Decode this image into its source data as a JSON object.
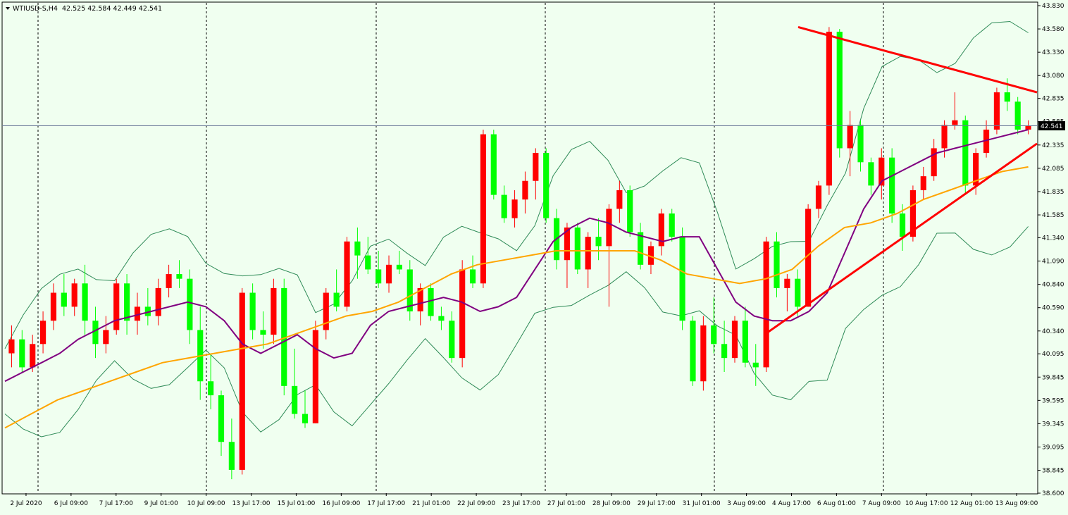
{
  "header": {
    "symbol": "WTIUSD-S,H4",
    "ohlc": "42.525 42.584 42.449 42.541"
  },
  "current_price_label": "42.541",
  "chart_data": {
    "type": "candlestick",
    "title": "",
    "xlabel": "",
    "ylabel": "",
    "ylim": [
      38.6,
      43.83
    ],
    "grid": "vertical dashed at session separators",
    "current_price": 42.541,
    "y_ticks": [
      "43.830",
      "43.580",
      "43.330",
      "43.080",
      "42.835",
      "42.585",
      "42.335",
      "42.085",
      "41.835",
      "41.585",
      "41.340",
      "41.090",
      "40.840",
      "40.590",
      "40.340",
      "40.095",
      "39.845",
      "39.595",
      "39.345",
      "39.095",
      "38.845",
      "38.600"
    ],
    "x_ticks": [
      "2 Jul 2020",
      "6 Jul 09:00",
      "7 Jul 17:00",
      "9 Jul 01:00",
      "10 Jul 09:00",
      "13 Jul 17:00",
      "15 Jul 01:00",
      "16 Jul 09:00",
      "17 Jul 17:00",
      "21 Jul 01:00",
      "22 Jul 09:00",
      "23 Jul 17:00",
      "27 Jul 01:00",
      "28 Jul 09:00",
      "29 Jul 17:00",
      "31 Jul 01:00",
      "3 Aug 09:00",
      "4 Aug 17:00",
      "6 Aug 01:00",
      "7 Aug 09:00",
      "10 Aug 17:00",
      "12 Aug 01:00",
      "13 Aug 09:00"
    ],
    "up_color": "#FF0000",
    "down_color": "#00FF00",
    "candles": [
      [
        40.1,
        40.4,
        39.95,
        40.25
      ],
      [
        40.25,
        40.35,
        39.9,
        39.95
      ],
      [
        39.95,
        40.3,
        39.9,
        40.2
      ],
      [
        40.2,
        40.55,
        40.1,
        40.45
      ],
      [
        40.45,
        40.85,
        40.35,
        40.75
      ],
      [
        40.75,
        40.95,
        40.5,
        40.6
      ],
      [
        40.6,
        40.9,
        40.5,
        40.85
      ],
      [
        40.85,
        41.05,
        40.3,
        40.45
      ],
      [
        40.45,
        40.6,
        40.05,
        40.2
      ],
      [
        40.2,
        40.5,
        40.1,
        40.35
      ],
      [
        40.35,
        40.9,
        40.3,
        40.85
      ],
      [
        40.85,
        40.95,
        40.3,
        40.45
      ],
      [
        40.45,
        40.75,
        40.3,
        40.6
      ],
      [
        40.6,
        40.8,
        40.4,
        40.5
      ],
      [
        40.5,
        40.9,
        40.4,
        40.8
      ],
      [
        40.8,
        41.05,
        40.7,
        40.95
      ],
      [
        40.95,
        41.1,
        40.8,
        40.9
      ],
      [
        40.9,
        41.0,
        40.2,
        40.35
      ],
      [
        40.35,
        40.6,
        39.6,
        39.8
      ],
      [
        39.8,
        40.1,
        39.5,
        39.65
      ],
      [
        39.65,
        39.7,
        39.0,
        39.15
      ],
      [
        39.15,
        39.4,
        38.75,
        38.85
      ],
      [
        38.85,
        40.8,
        38.8,
        40.75
      ],
      [
        40.75,
        40.85,
        40.25,
        40.35
      ],
      [
        40.35,
        40.55,
        40.15,
        40.3
      ],
      [
        40.3,
        40.9,
        40.2,
        40.8
      ],
      [
        40.8,
        40.9,
        39.65,
        39.75
      ],
      [
        39.75,
        40.15,
        39.4,
        39.45
      ],
      [
        39.45,
        39.7,
        39.3,
        39.35
      ],
      [
        39.35,
        40.45,
        39.35,
        40.35
      ],
      [
        40.35,
        40.8,
        40.25,
        40.75
      ],
      [
        40.75,
        41.0,
        40.55,
        40.6
      ],
      [
        40.6,
        41.35,
        40.55,
        41.3
      ],
      [
        41.3,
        41.45,
        40.9,
        41.15
      ],
      [
        41.15,
        41.35,
        40.95,
        41.0
      ],
      [
        41.0,
        41.2,
        40.8,
        40.85
      ],
      [
        40.85,
        41.15,
        40.75,
        41.05
      ],
      [
        41.05,
        41.2,
        40.95,
        41.0
      ],
      [
        41.0,
        41.1,
        40.45,
        40.55
      ],
      [
        40.55,
        40.85,
        40.4,
        40.8
      ],
      [
        40.8,
        40.85,
        40.45,
        40.5
      ],
      [
        40.5,
        40.6,
        40.35,
        40.45
      ],
      [
        40.45,
        40.55,
        40.0,
        40.05
      ],
      [
        40.05,
        41.1,
        39.95,
        41.0
      ],
      [
        41.0,
        41.15,
        40.8,
        40.85
      ],
      [
        40.85,
        42.5,
        40.8,
        42.45
      ],
      [
        42.45,
        42.5,
        41.75,
        41.8
      ],
      [
        41.8,
        41.9,
        41.5,
        41.55
      ],
      [
        41.55,
        41.85,
        41.45,
        41.75
      ],
      [
        41.75,
        42.05,
        41.6,
        41.95
      ],
      [
        41.95,
        42.3,
        41.75,
        42.25
      ],
      [
        42.25,
        42.3,
        41.5,
        41.55
      ],
      [
        41.55,
        41.65,
        41.0,
        41.1
      ],
      [
        41.1,
        41.5,
        40.8,
        41.45
      ],
      [
        41.45,
        41.5,
        40.95,
        41.0
      ],
      [
        41.0,
        41.4,
        40.8,
        41.35
      ],
      [
        41.35,
        41.55,
        41.1,
        41.25
      ],
      [
        41.25,
        41.7,
        40.6,
        41.65
      ],
      [
        41.65,
        41.95,
        41.5,
        41.85
      ],
      [
        41.85,
        41.9,
        41.35,
        41.4
      ],
      [
        41.4,
        41.5,
        41.0,
        41.05
      ],
      [
        41.05,
        41.3,
        40.95,
        41.25
      ],
      [
        41.25,
        41.65,
        41.15,
        41.6
      ],
      [
        41.6,
        41.65,
        41.3,
        41.35
      ],
      [
        41.35,
        41.45,
        40.35,
        40.45
      ],
      [
        40.45,
        40.5,
        39.75,
        39.8
      ],
      [
        39.8,
        40.5,
        39.7,
        40.4
      ],
      [
        40.4,
        40.7,
        40.1,
        40.2
      ],
      [
        40.2,
        40.45,
        39.9,
        40.05
      ],
      [
        40.05,
        40.5,
        40.0,
        40.45
      ],
      [
        40.45,
        40.6,
        39.95,
        40.0
      ],
      [
        40.0,
        40.2,
        39.75,
        39.95
      ],
      [
        39.95,
        41.35,
        39.9,
        41.3
      ],
      [
        41.3,
        41.4,
        40.7,
        40.8
      ],
      [
        40.8,
        40.95,
        40.55,
        40.9
      ],
      [
        40.9,
        41.0,
        40.5,
        40.6
      ],
      [
        40.6,
        41.7,
        40.6,
        41.65
      ],
      [
        41.65,
        41.95,
        41.55,
        41.9
      ],
      [
        41.9,
        43.6,
        41.8,
        43.55
      ],
      [
        43.55,
        43.58,
        42.2,
        42.3
      ],
      [
        42.3,
        42.7,
        42.0,
        42.55
      ],
      [
        42.55,
        42.6,
        42.05,
        42.15
      ],
      [
        42.15,
        42.2,
        41.8,
        41.9
      ],
      [
        41.9,
        42.3,
        41.75,
        42.2
      ],
      [
        42.2,
        42.3,
        41.5,
        41.6
      ],
      [
        41.6,
        41.7,
        41.2,
        41.35
      ],
      [
        41.35,
        41.9,
        41.3,
        41.85
      ],
      [
        41.85,
        42.1,
        41.75,
        42.0
      ],
      [
        42.0,
        42.4,
        41.95,
        42.3
      ],
      [
        42.3,
        42.6,
        42.2,
        42.55
      ],
      [
        42.55,
        42.9,
        42.5,
        42.6
      ],
      [
        42.6,
        42.65,
        41.8,
        41.9
      ],
      [
        41.9,
        42.3,
        41.8,
        42.25
      ],
      [
        42.25,
        42.6,
        42.2,
        42.5
      ],
      [
        42.5,
        42.95,
        42.45,
        42.9
      ],
      [
        42.9,
        43.05,
        42.7,
        42.8
      ],
      [
        42.8,
        42.85,
        42.45,
        42.5
      ],
      [
        42.5,
        42.6,
        42.45,
        42.54
      ]
    ],
    "series": [
      {
        "name": "",
        "color": "#800080",
        "values": [
          39.8,
          39.9,
          40.0,
          40.1,
          40.25,
          40.35,
          40.45,
          40.5,
          40.55,
          40.6,
          40.65,
          40.6,
          40.45,
          40.2,
          40.1,
          40.2,
          40.3,
          40.15,
          40.05,
          40.1,
          40.4,
          40.55,
          40.6,
          40.65,
          40.7,
          40.65,
          40.55,
          40.6,
          40.7,
          41.0,
          41.3,
          41.45,
          41.55,
          41.5,
          41.4,
          41.35,
          41.3,
          41.35,
          41.35,
          41.0,
          40.65,
          40.5,
          40.45,
          40.45,
          40.55,
          40.75,
          41.2,
          41.65,
          41.95,
          42.05,
          42.15,
          42.25,
          42.3,
          42.35,
          42.4,
          42.45,
          42.5
        ]
      },
      {
        "name": "",
        "color": "#FFA500",
        "values": [
          39.3,
          39.45,
          39.6,
          39.7,
          39.8,
          39.9,
          40.0,
          40.05,
          40.1,
          40.15,
          40.2,
          40.3,
          40.4,
          40.5,
          40.55,
          40.65,
          40.8,
          40.95,
          41.05,
          41.1,
          41.15,
          41.2,
          41.2,
          41.2,
          41.2,
          41.1,
          40.95,
          40.9,
          40.85,
          40.9,
          41.0,
          41.25,
          41.45,
          41.5,
          41.6,
          41.75,
          41.85,
          41.95,
          42.05,
          42.1
        ]
      }
    ],
    "trend_lines": [
      {
        "from": [
          "4 Aug 09:00",
          40.3
        ],
        "to": [
          "14 Aug 01:00",
          42.35
        ]
      },
      {
        "from": [
          "4 Aug 17:00",
          43.6
        ],
        "to": [
          "14 Aug 05:00",
          42.9
        ]
      }
    ]
  }
}
